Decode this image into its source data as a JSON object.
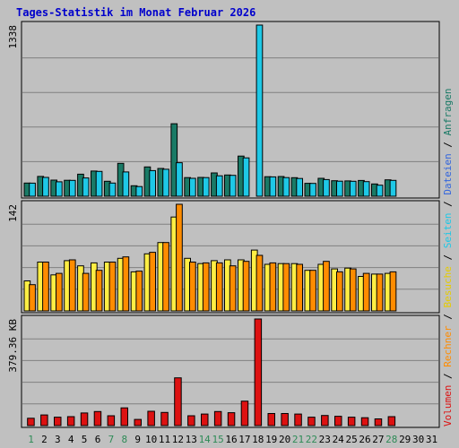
{
  "title": "Tages-Statistik im Monat Februar 2026",
  "colors": {
    "title": "#0000cc",
    "background": "#c0c0c0",
    "frame": "#ffffff",
    "grid": "#808080",
    "weekday_label": "#000000",
    "weekend_label": "#2e8b57",
    "anfragen": "#1a7a66",
    "dateien": "#1ec8e6",
    "seiten": "#1ec8e6",
    "besuche": "#ffee44",
    "rechner": "#ff8c00",
    "volumen": "#dd1111",
    "legend_separator": "#000000"
  },
  "legend": [
    {
      "label": "Anfragen",
      "color": "#1a7a66"
    },
    {
      "label": "Dateien",
      "color": "#3366dd"
    },
    {
      "label": "Seiten",
      "color": "#1ec8e6"
    },
    {
      "label": "Besuche",
      "color": "#e6cc00"
    },
    {
      "label": "Rechner",
      "color": "#ff8c00"
    },
    {
      "label": "Volumen",
      "color": "#dd1111"
    }
  ],
  "legend_separator": "/",
  "chart_data": {
    "type": "bar",
    "categories": [
      "1",
      "2",
      "3",
      "4",
      "5",
      "6",
      "7",
      "8",
      "9",
      "10",
      "11",
      "12",
      "13",
      "14",
      "15",
      "16",
      "17",
      "18",
      "19",
      "20",
      "21",
      "22",
      "23",
      "24",
      "25",
      "26",
      "27",
      "28",
      "29",
      "30",
      "31"
    ],
    "weekend_days": [
      "1",
      "7",
      "8",
      "14",
      "15",
      "21",
      "22",
      "28"
    ],
    "grid": true,
    "panels": [
      {
        "y_max_label": "1338",
        "ylim": [
          0,
          1338
        ],
        "series": [
          {
            "name": "Anfragen",
            "values": [
              103,
              155,
              126,
              125,
              172,
              197,
              117,
              257,
              82,
              229,
              217,
              567,
              146,
              147,
              182,
              166,
              314,
              null,
              153,
              154,
              145,
              101,
              140,
              121,
              120,
              123,
              96,
              128,
              null,
              null,
              null
            ]
          },
          {
            "name": "Dateien",
            "values": [
              102,
              147,
              113,
              124,
              143,
              194,
              103,
              190,
              76,
              200,
              211,
              262,
              140,
              146,
              160,
              163,
              300,
              1338,
              151,
              146,
              139,
              100,
              130,
              118,
              117,
              114,
              86,
              124,
              null,
              null,
              null
            ]
          }
        ]
      },
      {
        "y_max_label": "142",
        "ylim": [
          0,
          142
        ],
        "series": [
          {
            "name": "Besuche",
            "values": [
              40,
              65,
              48,
              67,
              60,
              64,
              65,
              70,
              52,
              76,
              91,
              125,
              70,
              63,
              67,
              68,
              68,
              81,
              62,
              63,
              63,
              54,
              62,
              56,
              57,
              46,
              49,
              50,
              null,
              null,
              null
            ]
          },
          {
            "name": "Rechner",
            "values": [
              35,
              65,
              50,
              68,
              50,
              54,
              65,
              72,
              53,
              78,
              91,
              142,
              65,
              64,
              64,
              60,
              66,
              74,
              64,
              63,
              62,
              54,
              66,
              52,
              56,
              50,
              49,
              52,
              null,
              null,
              null
            ]
          }
        ]
      },
      {
        "y_max_label": "379.36 KB",
        "ylim": [
          0,
          379.36
        ],
        "series": [
          {
            "name": "Volumen",
            "values": [
              26,
              38,
              30,
              32,
              45,
              50,
              35,
              63,
              22,
              51,
              47,
              170,
              35,
              41,
              50,
              46,
              87,
              379.36,
              43,
              43,
              41,
              30,
              36,
              33,
              30,
              28,
              24,
              32,
              null,
              null,
              null
            ]
          }
        ]
      }
    ]
  }
}
